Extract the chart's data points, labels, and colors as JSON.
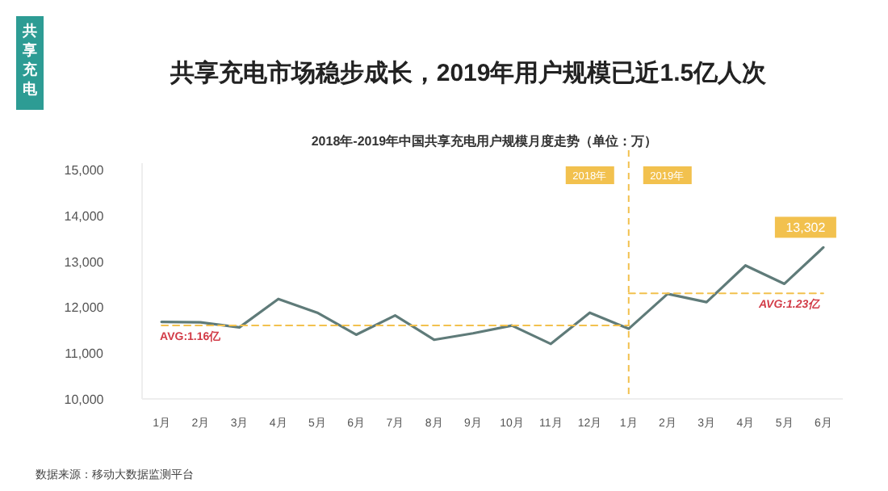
{
  "chart_data": {
    "type": "line",
    "title": "共享充电市场稳步成长，2019年用户规模已近1.5亿人次",
    "subtitle": "2018年-2019年中国共享充电用户规模月度走势（单位：万）",
    "x": [
      "2018-01",
      "2018-02",
      "2018-03",
      "2018-04",
      "2018-05",
      "2018-06",
      "2018-07",
      "2018-08",
      "2018-09",
      "2018-10",
      "2018-11",
      "2018-12",
      "2019-01",
      "2019-02",
      "2019-03",
      "2019-04",
      "2019-05",
      "2019-06"
    ],
    "xlim": [
      "2017-12-16",
      "2019-06-16"
    ],
    "xticks": [
      {
        "value": "2018-01",
        "label": "1月"
      },
      {
        "value": "2018-02",
        "label": "2月"
      },
      {
        "value": "2018-03",
        "label": "3月"
      },
      {
        "value": "2018-04",
        "label": "4月"
      },
      {
        "value": "2018-05",
        "label": "5月"
      },
      {
        "value": "2018-06",
        "label": "6月"
      },
      {
        "value": "2018-07",
        "label": "7月"
      },
      {
        "value": "2018-08",
        "label": "8月"
      },
      {
        "value": "2018-09",
        "label": "9月"
      },
      {
        "value": "2018-10",
        "label": "10月"
      },
      {
        "value": "2018-11",
        "label": "11月"
      },
      {
        "value": "2018-12",
        "label": "12月"
      },
      {
        "value": "2019-01",
        "label": "1月"
      },
      {
        "value": "2019-02",
        "label": "2月"
      },
      {
        "value": "2019-03",
        "label": "3月"
      },
      {
        "value": "2019-04",
        "label": "4月"
      },
      {
        "value": "2019-05",
        "label": "5月"
      },
      {
        "value": "2019-06",
        "label": "6月"
      }
    ],
    "ylim": [
      10000,
      15000
    ],
    "yticks": [
      {
        "value": 10000,
        "label": "10,000"
      },
      {
        "value": 11000,
        "label": "11,000"
      },
      {
        "value": 12000,
        "label": "12,000"
      },
      {
        "value": 13000,
        "label": "13,000"
      },
      {
        "value": 14000,
        "label": "14,000"
      },
      {
        "value": 15000,
        "label": "15,000"
      }
    ],
    "marker": "none",
    "series": [
      {
        "color": "#5f7b79",
        "values": [
          11680,
          11670,
          11560,
          12180,
          11880,
          11400,
          11820,
          11290,
          11430,
          11600,
          11200,
          11880,
          11530,
          12290,
          12110,
          12910,
          12510,
          13302
        ],
        "value_labels": [
          null,
          null,
          null,
          null,
          null,
          null,
          null,
          null,
          null,
          null,
          null,
          null,
          null,
          null,
          null,
          null,
          null,
          "13,302"
        ]
      },
      {
        "type": "line",
        "line_style": "dashed",
        "color": "#f2c14e",
        "x": [
          "2018-01",
          "2019-01"
        ],
        "values": [
          11600,
          11600
        ]
      },
      {
        "type": "line",
        "line_style": "dashed",
        "color": "#f2c14e",
        "x": [
          "2019-01",
          "2019-06"
        ],
        "values": [
          12300,
          12300
        ]
      }
    ],
    "ref_lines": [
      {
        "axis": "x",
        "value": "2019-01",
        "color": "#f2c14e",
        "line_style": "dashed"
      }
    ],
    "annotations": [
      {
        "text": "AVG:1.16亿",
        "x": "2018-01",
        "y": 11600
      },
      {
        "text": "AVG:1.23亿",
        "x": "2019-05",
        "y": 12300
      },
      "2018年",
      "2019年",
      "共享充电",
      "数据来源：移动大数据监测平台"
    ]
  }
}
